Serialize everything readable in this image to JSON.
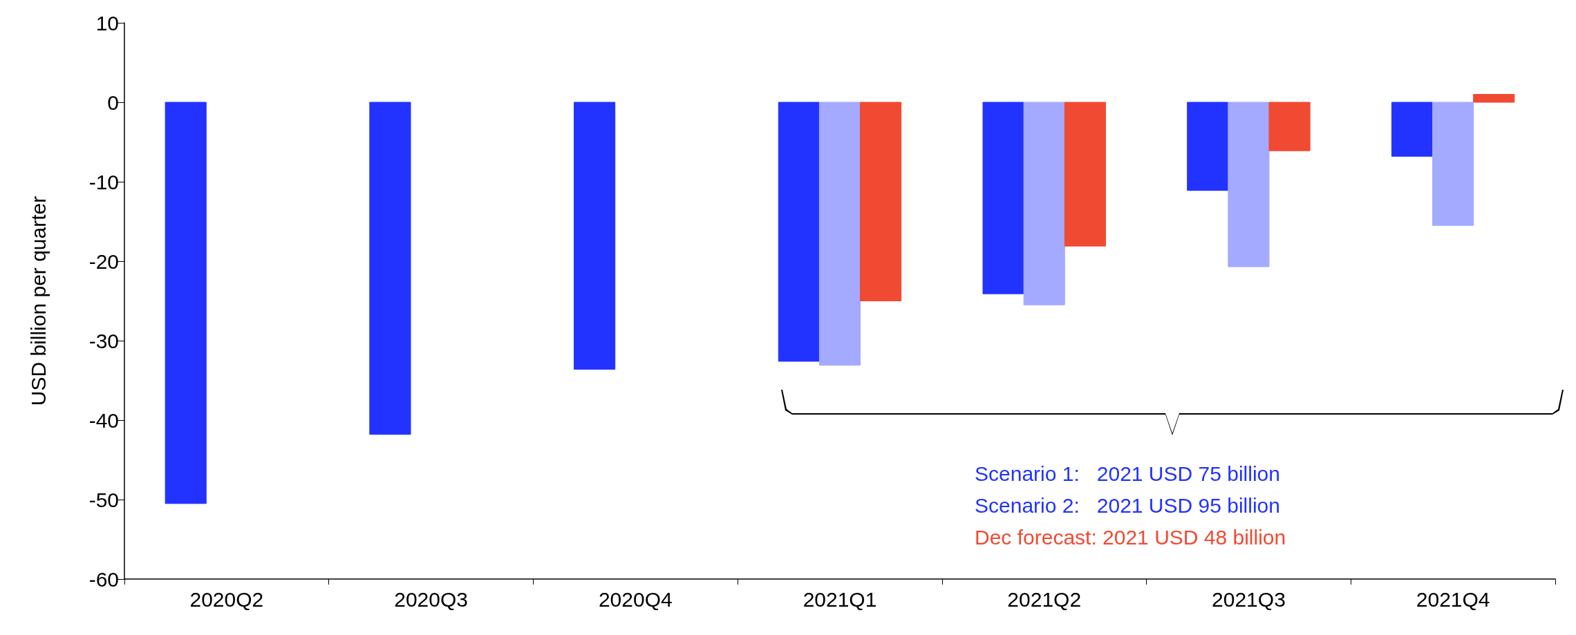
{
  "chart_data": {
    "type": "bar",
    "ylabel": "USD billion per quarter",
    "categories": [
      "2020Q2",
      "2020Q3",
      "2020Q4",
      "2021Q1",
      "2021Q2",
      "2021Q3",
      "2021Q4"
    ],
    "series": [
      {
        "color": "#2233ff",
        "values": [
          -50.5,
          -41.8,
          -33.6,
          -32.6,
          -24.1,
          -11.1,
          -6.8
        ]
      },
      {
        "color": "#a3aaff",
        "values": [
          null,
          null,
          null,
          -33.1,
          -25.5,
          -20.7,
          -15.5
        ]
      },
      {
        "color": "#f04a33",
        "values": [
          null,
          null,
          null,
          -25.0,
          -18.1,
          -6.1,
          1.0
        ]
      }
    ],
    "ylim": [
      -60,
      10
    ],
    "yticks": [
      -60,
      -50,
      -40,
      -30,
      -20,
      -10,
      0,
      10
    ],
    "grid": false,
    "annotations": [
      "Scenario 1:   2021 USD 75 billion",
      "Scenario 2:   2021 USD 95 billion",
      "Dec forecast: 2021 USD 48 billion"
    ]
  }
}
